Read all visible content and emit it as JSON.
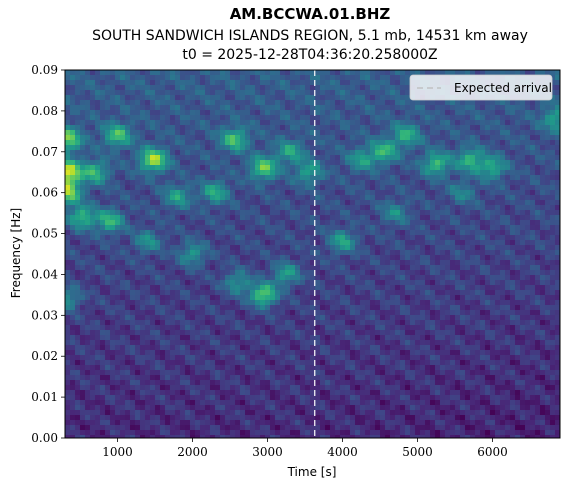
{
  "chart_data": {
    "type": "heatmap",
    "title": "AM.BCCWA.01.BHZ",
    "subtitle_lines": [
      "SOUTH SANDWICH ISLANDS REGION, 5.1 mb, 14531 km away",
      "t0 = 2025-12-28T04:36:20.258000Z"
    ],
    "xlabel": "Time [s]",
    "ylabel": "Frequency [Hz]",
    "xlim": [
      300,
      6900
    ],
    "ylim": [
      0.0,
      0.09
    ],
    "xticks": [
      1000,
      2000,
      3000,
      4000,
      5000,
      6000
    ],
    "xtick_labels": [
      "1000",
      "2000",
      "3000",
      "4000",
      "5000",
      "6000"
    ],
    "yticks": [
      0.0,
      0.01,
      0.02,
      0.03,
      0.04,
      0.05,
      0.06,
      0.07,
      0.08,
      0.09
    ],
    "ytick_labels": [
      "0.00",
      "0.01",
      "0.02",
      "0.03",
      "0.04",
      "0.05",
      "0.06",
      "0.07",
      "0.08",
      "0.09"
    ],
    "colormap": "viridis",
    "expected_arrival_time": 3630,
    "legend": {
      "position": "top-right",
      "entries": [
        "Expected arrival"
      ]
    },
    "hotspots": [
      {
        "t": 330,
        "f": 0.065,
        "level": 1.0
      },
      {
        "t": 330,
        "f": 0.06,
        "level": 0.8
      },
      {
        "t": 330,
        "f": 0.073,
        "level": 0.75
      },
      {
        "t": 330,
        "f": 0.034,
        "level": 0.45
      },
      {
        "t": 530,
        "f": 0.054,
        "level": 0.6
      },
      {
        "t": 900,
        "f": 0.053,
        "level": 0.6
      },
      {
        "t": 1000,
        "f": 0.074,
        "level": 0.6
      },
      {
        "t": 700,
        "f": 0.065,
        "level": 0.55
      },
      {
        "t": 1480,
        "f": 0.068,
        "level": 0.85
      },
      {
        "t": 1800,
        "f": 0.059,
        "level": 0.45
      },
      {
        "t": 1400,
        "f": 0.048,
        "level": 0.4
      },
      {
        "t": 2560,
        "f": 0.073,
        "level": 0.6
      },
      {
        "t": 2950,
        "f": 0.066,
        "level": 0.7
      },
      {
        "t": 2300,
        "f": 0.06,
        "level": 0.5
      },
      {
        "t": 2000,
        "f": 0.045,
        "level": 0.45
      },
      {
        "t": 2600,
        "f": 0.038,
        "level": 0.45
      },
      {
        "t": 2950,
        "f": 0.035,
        "level": 0.8
      },
      {
        "t": 3250,
        "f": 0.04,
        "level": 0.5
      },
      {
        "t": 3300,
        "f": 0.07,
        "level": 0.45
      },
      {
        "t": 3550,
        "f": 0.065,
        "level": 0.45
      },
      {
        "t": 4000,
        "f": 0.048,
        "level": 0.5
      },
      {
        "t": 4250,
        "f": 0.068,
        "level": 0.4
      },
      {
        "t": 4550,
        "f": 0.07,
        "level": 0.55
      },
      {
        "t": 4850,
        "f": 0.074,
        "level": 0.5
      },
      {
        "t": 5250,
        "f": 0.067,
        "level": 0.6
      },
      {
        "t": 5700,
        "f": 0.068,
        "level": 0.55
      },
      {
        "t": 6000,
        "f": 0.066,
        "level": 0.5
      },
      {
        "t": 6850,
        "f": 0.078,
        "level": 0.45
      },
      {
        "t": 4700,
        "f": 0.055,
        "level": 0.35
      },
      {
        "t": 5600,
        "f": 0.06,
        "level": 0.3
      }
    ]
  }
}
